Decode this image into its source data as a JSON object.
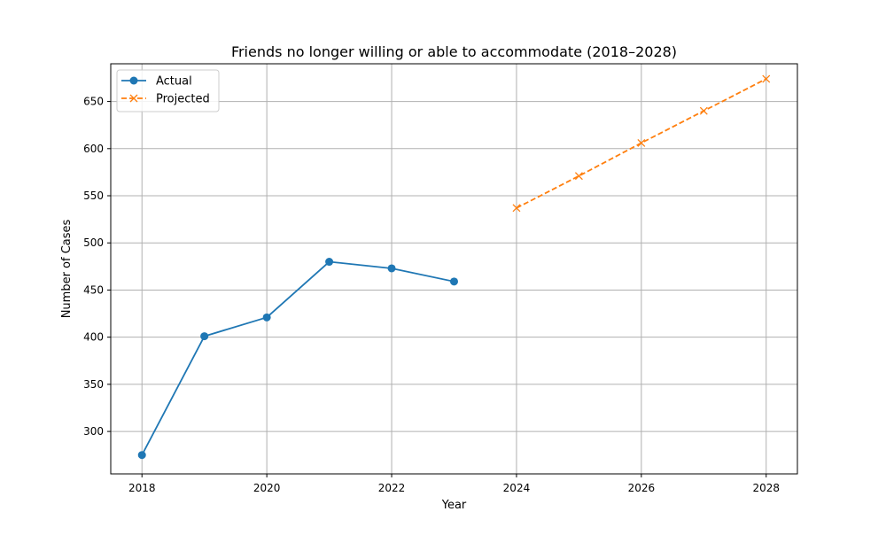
{
  "chart_data": {
    "type": "line",
    "title": "Friends no longer willing or able to accommodate (2018–2028)",
    "xlabel": "Year",
    "ylabel": "Number of Cases",
    "xlim": [
      2017.5,
      2028.5
    ],
    "ylim": [
      255,
      690
    ],
    "x_ticks": [
      2018,
      2020,
      2022,
      2024,
      2026,
      2028
    ],
    "y_ticks": [
      300,
      350,
      400,
      450,
      500,
      550,
      600,
      650
    ],
    "grid": true,
    "legend_position": "top-left",
    "series": [
      {
        "name": "Actual",
        "color": "#1f77b4",
        "line_style": "solid",
        "marker": "circle",
        "x": [
          2018,
          2019,
          2020,
          2021,
          2022,
          2023
        ],
        "values": [
          275,
          401,
          421,
          480,
          473,
          459
        ]
      },
      {
        "name": "Projected",
        "color": "#ff7f0e",
        "line_style": "dashed",
        "marker": "x",
        "x": [
          2024,
          2025,
          2026,
          2027,
          2028
        ],
        "values": [
          537,
          571,
          606,
          640,
          674
        ]
      }
    ]
  }
}
